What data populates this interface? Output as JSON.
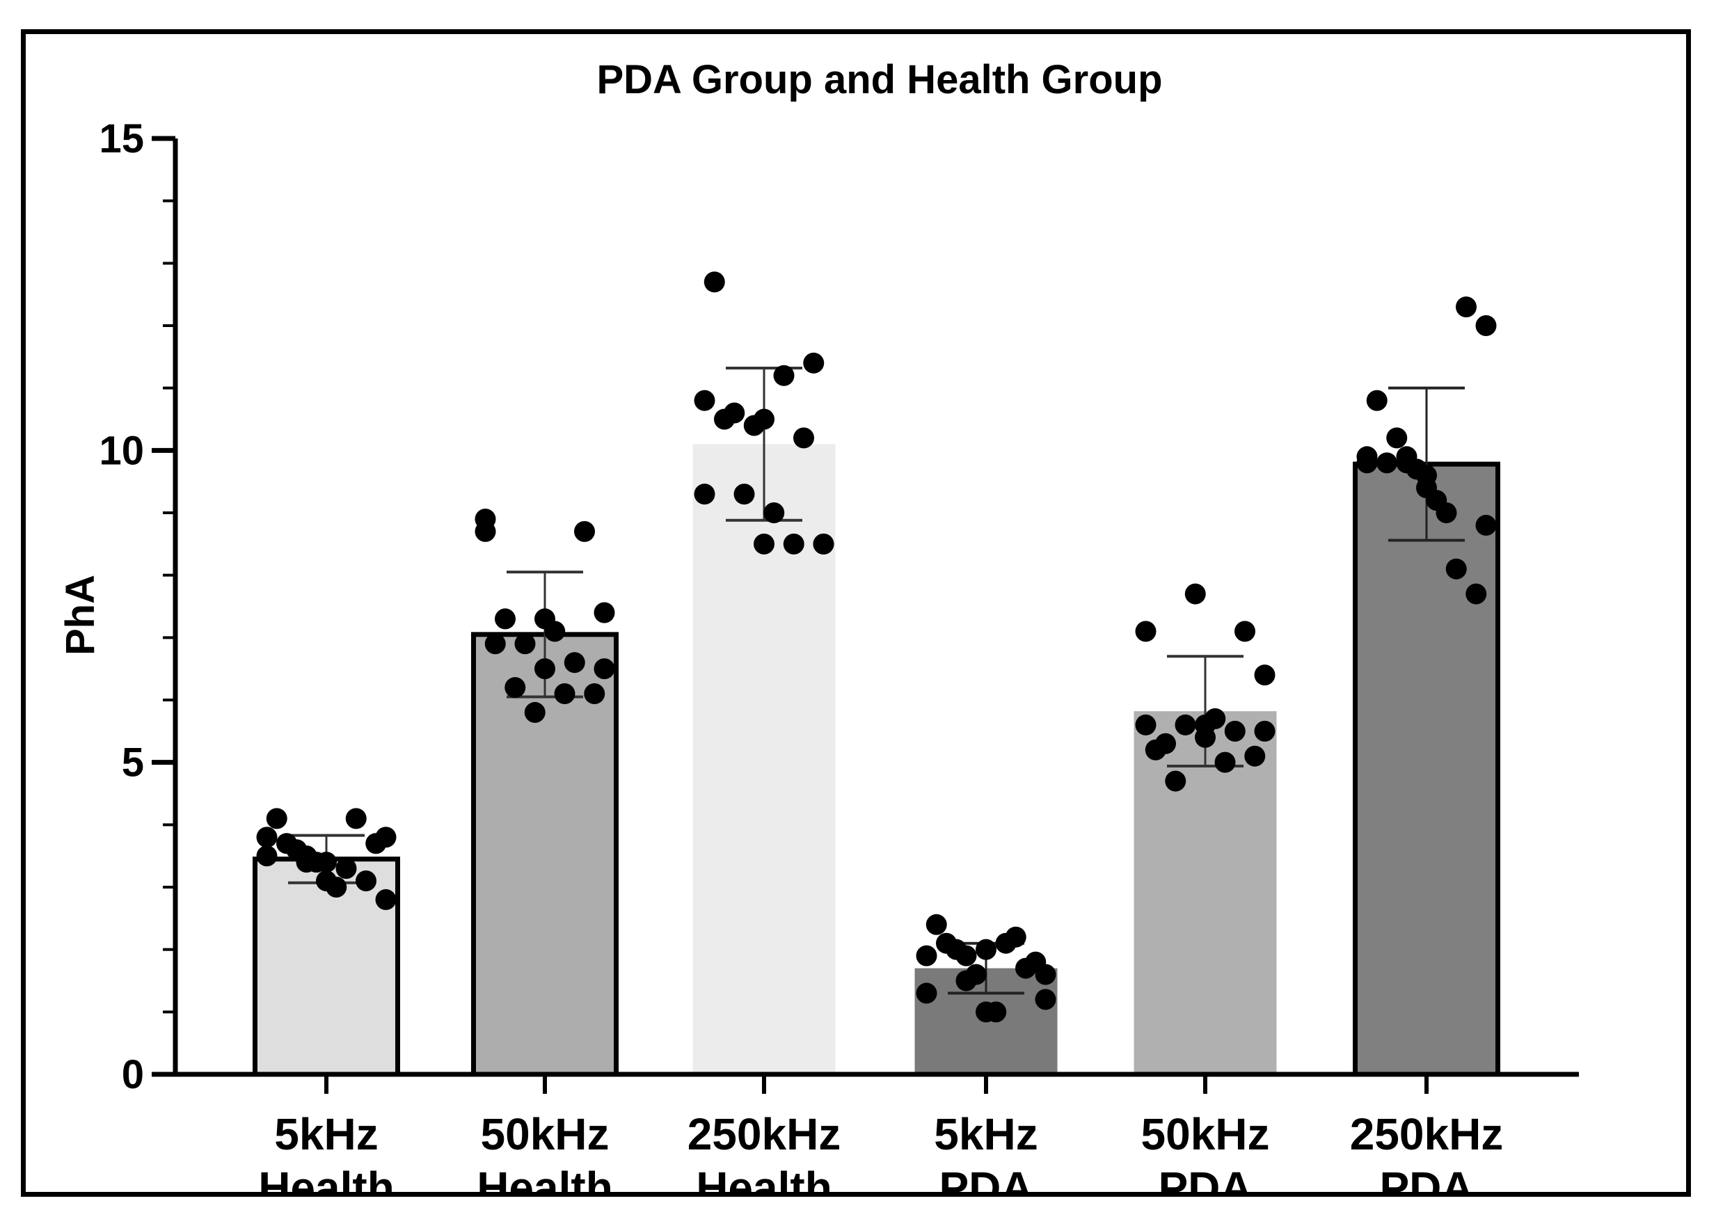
{
  "chart_data": {
    "type": "bar",
    "title": "PDA Group and Health Group",
    "xlabel": "",
    "ylabel": "PhA",
    "ylim": [
      0,
      15
    ],
    "yticks": [
      0,
      5,
      10,
      15
    ],
    "yticks_labels": [
      "0",
      "5",
      "10",
      "15"
    ],
    "categories": [
      [
        "5kHz",
        "Health"
      ],
      [
        "50kHz",
        "Health"
      ],
      [
        "250kHz",
        "Health"
      ],
      [
        "5kHz",
        "PDA"
      ],
      [
        "50kHz",
        "PDA"
      ],
      [
        "250kHz",
        "PDA"
      ]
    ],
    "values": [
      3.45,
      7.05,
      10.1,
      1.7,
      5.82,
      9.78
    ],
    "error_sd": [
      0.38,
      1.0,
      1.22,
      0.4,
      0.88,
      1.22
    ],
    "bar_colors": [
      "#dedede",
      "#adadad",
      "#ececec",
      "#7a7a7a",
      "#b0b0b0",
      "#808080"
    ],
    "bar_outlined": [
      true,
      true,
      false,
      false,
      false,
      true
    ],
    "points": [
      [
        3.8,
        3.7,
        3.5,
        3.4,
        3.3,
        3.1,
        2.8,
        4.1,
        3.6,
        3.4,
        3.0,
        4.1,
        3.7,
        3.5,
        3.1,
        3.8,
        3.4
      ],
      [
        8.7,
        7.3,
        6.9,
        6.5,
        6.1,
        8.7,
        7.4,
        6.9,
        6.2,
        5.8,
        7.1,
        6.6,
        6.1,
        8.9,
        7.3,
        6.5
      ],
      [
        10.8,
        10.5,
        9.3,
        8.5,
        11.2,
        10.2,
        8.5,
        12.7,
        10.6,
        10.4,
        9.0,
        8.5,
        11.4,
        9.3,
        10.5,
        8.5
      ],
      [
        1.9,
        2.1,
        1.5,
        1.0,
        2.1,
        1.7,
        1.2,
        2.4,
        2.0,
        1.6,
        1.0,
        2.2,
        1.8,
        1.3,
        2.0,
        1.6,
        1.9
      ],
      [
        5.6,
        5.3,
        5.6,
        5.4,
        5.0,
        7.1,
        6.4,
        5.2,
        4.7,
        7.7,
        5.7,
        5.5,
        5.1,
        7.1,
        5.6,
        5.5
      ],
      [
        9.8,
        9.8,
        9.9,
        9.4,
        9.0,
        12.3,
        12.0,
        10.8,
        10.2,
        9.7,
        9.2,
        8.1,
        7.7,
        9.9,
        9.6,
        8.8,
        9.8
      ]
    ]
  }
}
